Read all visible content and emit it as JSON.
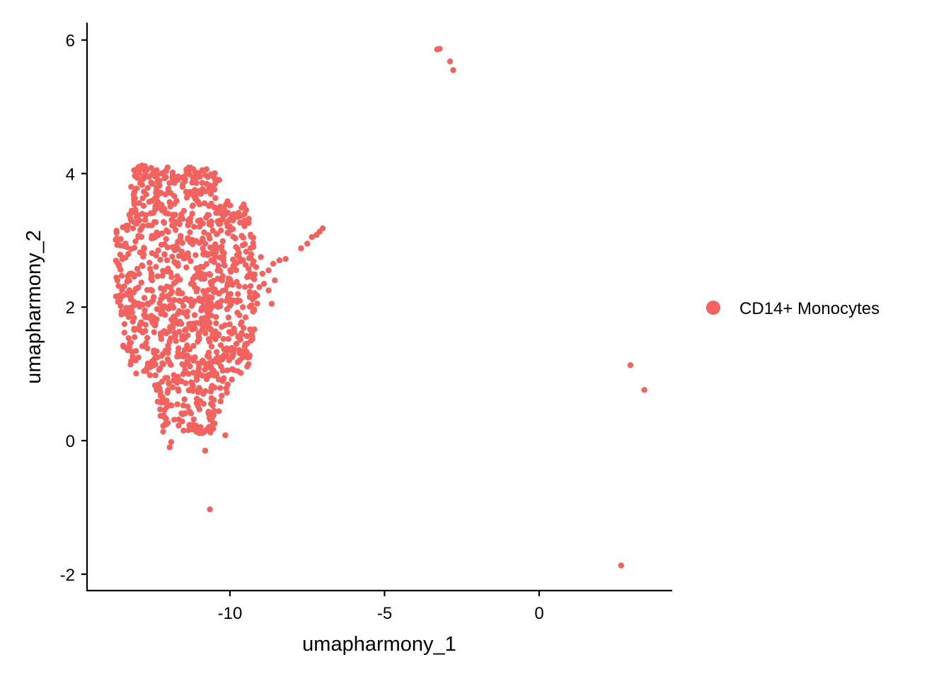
{
  "chart_data": {
    "type": "scatter",
    "title": "",
    "xlabel": "umapharmony_1",
    "ylabel": "umapharmony_2",
    "xlim": [
      -14.7,
      4.2
    ],
    "ylim": [
      -2.25,
      6.3
    ],
    "xticks": [
      -10,
      -5,
      0
    ],
    "yticks": [
      -2,
      0,
      2,
      4,
      6
    ],
    "xtick_labels": [
      "-10",
      "-5",
      "0"
    ],
    "ytick_labels": [
      "-2",
      "0",
      "2",
      "4",
      "6"
    ],
    "grid": false,
    "legend_position": "right",
    "point_color": "#F2625F",
    "series": [
      {
        "name": "CD14+ Monocytes",
        "color": "#F2625F",
        "main_cluster": {
          "description_free": true,
          "center": [
            -11.2,
            2.25
          ],
          "x_range": [
            -13.7,
            -9.1
          ],
          "y_range": [
            0.1,
            4.1
          ],
          "approx_count": 1100
        },
        "points": [
          [
            -3.3,
            5.86
          ],
          [
            -3.22,
            5.87
          ],
          [
            -2.88,
            5.68
          ],
          [
            -2.78,
            5.55
          ],
          [
            2.95,
            1.13
          ],
          [
            3.4,
            0.76
          ],
          [
            2.65,
            -1.87
          ],
          [
            -10.65,
            -1.03
          ],
          [
            -11.9,
            -0.02
          ],
          [
            -11.95,
            -0.1
          ],
          [
            -10.8,
            -0.15
          ],
          [
            -11.5,
            0.15
          ],
          [
            -11.05,
            0.2
          ],
          [
            -10.6,
            0.18
          ],
          [
            -10.15,
            0.08
          ],
          [
            -7.0,
            3.18
          ],
          [
            -7.1,
            3.13
          ],
          [
            -7.2,
            3.08
          ],
          [
            -7.35,
            3.05
          ],
          [
            -7.5,
            2.95
          ],
          [
            -7.7,
            2.88
          ],
          [
            -8.2,
            2.72
          ],
          [
            -8.4,
            2.7
          ],
          [
            -8.6,
            2.65
          ],
          [
            -8.75,
            2.55
          ],
          [
            -8.55,
            2.4
          ],
          [
            -8.95,
            2.5
          ],
          [
            -8.9,
            2.35
          ],
          [
            -8.75,
            2.25
          ],
          [
            -9.05,
            2.3
          ],
          [
            -9.2,
            2.15
          ],
          [
            -9.3,
            2.45
          ],
          [
            -9.0,
            2.75
          ],
          [
            -9.15,
            2.6
          ],
          [
            -8.65,
            2.05
          ],
          [
            -12.95,
            4.1
          ],
          [
            -12.85,
            4.12
          ],
          [
            -12.75,
            4.11
          ],
          [
            -13.1,
            4.05
          ],
          [
            -13.05,
            3.98
          ],
          [
            -12.2,
            4.0
          ],
          [
            -11.85,
            3.98
          ],
          [
            -11.5,
            3.95
          ],
          [
            -11.2,
            3.93
          ],
          [
            -10.9,
            3.86
          ],
          [
            -10.65,
            3.82
          ]
        ]
      }
    ]
  }
}
